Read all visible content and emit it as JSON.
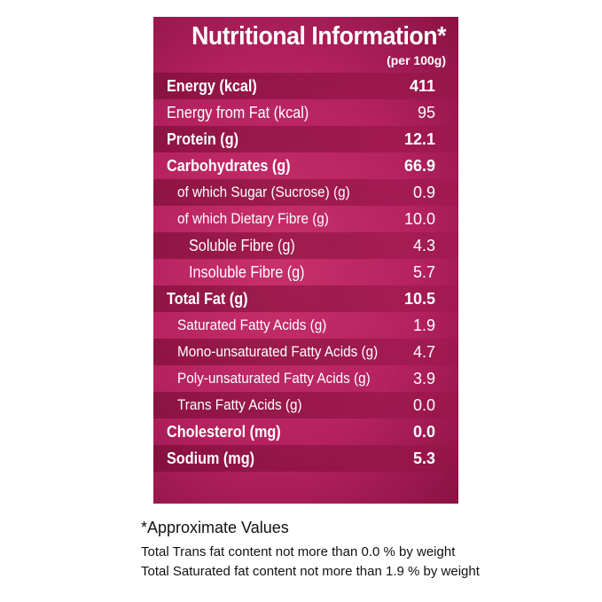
{
  "title": "Nutritional Information*",
  "subtitle": "(per 100g)",
  "rows": [
    {
      "label": "Energy (kcal)",
      "value": "411",
      "bold": true,
      "level": 0
    },
    {
      "label": "Energy from Fat (kcal)",
      "value": "95",
      "bold": false,
      "level": 0
    },
    {
      "label": "Protein (g)",
      "value": "12.1",
      "bold": true,
      "level": 0
    },
    {
      "label": "Carbohydrates (g)",
      "value": "66.9",
      "bold": true,
      "level": 0
    },
    {
      "label": "of which Sugar (Sucrose) (g)",
      "value": "0.9",
      "bold": false,
      "level": 1
    },
    {
      "label": "of which Dietary Fibre (g)",
      "value": "10.0",
      "bold": false,
      "level": 1
    },
    {
      "label": "Soluble Fibre (g)",
      "value": "4.3",
      "bold": false,
      "level": 2
    },
    {
      "label": "Insoluble Fibre (g)",
      "value": "5.7",
      "bold": false,
      "level": 2
    },
    {
      "label": "Total Fat (g)",
      "value": "10.5",
      "bold": true,
      "level": 0
    },
    {
      "label": "Saturated Fatty Acids (g)",
      "value": "1.9",
      "bold": false,
      "level": 1
    },
    {
      "label": "Mono-unsaturated Fatty Acids (g)",
      "value": "4.7",
      "bold": false,
      "level": 1
    },
    {
      "label": "Poly-unsaturated Fatty Acids (g)",
      "value": "3.9",
      "bold": false,
      "level": 1
    },
    {
      "label": "Trans Fatty Acids (g)",
      "value": "0.0",
      "bold": false,
      "level": 1
    },
    {
      "label": "Cholesterol (mg)",
      "value": "0.0",
      "bold": true,
      "level": 0
    },
    {
      "label": "Sodium (mg)",
      "value": "5.3",
      "bold": true,
      "level": 0
    }
  ],
  "footnotes": {
    "approx": "*Approximate Values",
    "trans": "Total Trans fat content not more than 0.0 % by weight",
    "saturated": "Total Saturated fat content not more than 1.9 % by weight"
  },
  "colors": {
    "panel": "#b52260",
    "stripe": "#8e1444",
    "text": "#ffffff"
  }
}
